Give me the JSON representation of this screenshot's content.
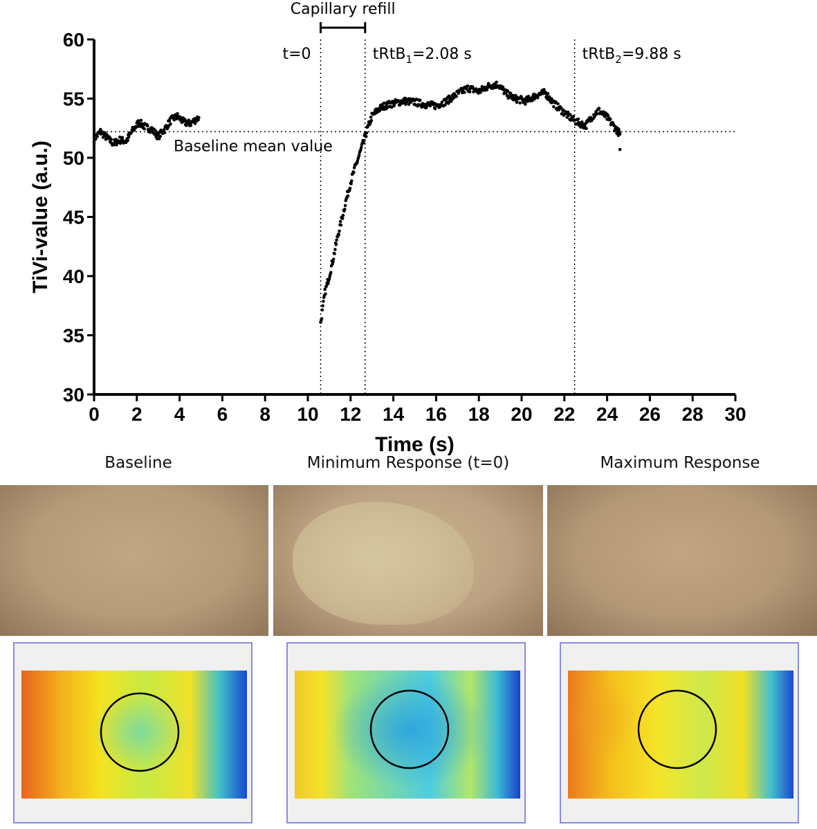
{
  "chart_data": {
    "type": "scatter",
    "xlabel": "Time (s)",
    "ylabel": "TiVi-value (a.u.)",
    "xlim": [
      0,
      30
    ],
    "ylim": [
      30,
      60
    ],
    "xticks": [
      0,
      2,
      4,
      6,
      8,
      10,
      12,
      14,
      16,
      18,
      20,
      22,
      24,
      26,
      28,
      30
    ],
    "yticks": [
      30,
      35,
      40,
      45,
      50,
      55,
      60
    ],
    "baseline_mean": 52.2,
    "baseline_label": "Baseline mean value",
    "vlines": [
      {
        "x": 10.6,
        "label": "t=0"
      },
      {
        "x": 12.68,
        "label_main": "tRtB",
        "label_sub": "1",
        "label_tail": "=2.08 s"
      },
      {
        "x": 22.48,
        "label_main": "tRtB",
        "label_sub": "2",
        "label_tail": "=9.88 s"
      }
    ],
    "bracket": {
      "x_start": 10.6,
      "x_end": 12.68,
      "label": "Capillary refill"
    },
    "series": [
      {
        "x_start": 0,
        "x_end": 4.9,
        "points": [
          [
            0,
            51.6
          ],
          [
            0.3,
            52.2
          ],
          [
            0.6,
            51.7
          ],
          [
            0.9,
            51.2
          ],
          [
            1.2,
            51.5
          ],
          [
            1.5,
            51.4
          ],
          [
            1.8,
            52.3
          ],
          [
            2.1,
            53.0
          ],
          [
            2.4,
            52.6
          ],
          [
            2.7,
            52.4
          ],
          [
            3.0,
            51.8
          ],
          [
            3.3,
            52.4
          ],
          [
            3.6,
            53.2
          ],
          [
            3.9,
            53.5
          ],
          [
            4.2,
            53.0
          ],
          [
            4.5,
            52.9
          ],
          [
            4.9,
            53.4
          ]
        ]
      },
      {
        "x_start": 10.6,
        "x_end": 24.6,
        "points": [
          [
            10.6,
            36.0
          ],
          [
            10.8,
            38.6
          ],
          [
            11.0,
            40.0
          ],
          [
            11.2,
            41.6
          ],
          [
            11.4,
            43.4
          ],
          [
            11.6,
            44.9
          ],
          [
            11.8,
            46.5
          ],
          [
            12.0,
            47.9
          ],
          [
            12.2,
            49.1
          ],
          [
            12.4,
            50.2
          ],
          [
            12.6,
            51.3
          ],
          [
            12.8,
            52.5
          ],
          [
            13.0,
            53.5
          ],
          [
            13.3,
            54.1
          ],
          [
            13.6,
            54.4
          ],
          [
            14.0,
            54.6
          ],
          [
            14.5,
            54.8
          ],
          [
            15.0,
            54.7
          ],
          [
            15.5,
            54.5
          ],
          [
            16.0,
            54.4
          ],
          [
            16.5,
            54.8
          ],
          [
            17.0,
            55.4
          ],
          [
            17.5,
            55.9
          ],
          [
            18.0,
            55.6
          ],
          [
            18.5,
            56.1
          ],
          [
            18.9,
            56.2
          ],
          [
            19.3,
            55.4
          ],
          [
            19.7,
            55.0
          ],
          [
            20.2,
            54.8
          ],
          [
            20.7,
            55.3
          ],
          [
            21.1,
            55.5
          ],
          [
            21.5,
            54.6
          ],
          [
            22.0,
            53.8
          ],
          [
            22.5,
            53.1
          ],
          [
            23.0,
            52.7
          ],
          [
            23.3,
            53.5
          ],
          [
            23.6,
            54.0
          ],
          [
            24.0,
            53.4
          ],
          [
            24.3,
            52.7
          ],
          [
            24.6,
            52.0
          ]
        ]
      }
    ]
  },
  "panels": [
    {
      "title": "Baseline"
    },
    {
      "title": "Minimum Response (t=0)"
    },
    {
      "title": "Maximum Response"
    }
  ]
}
